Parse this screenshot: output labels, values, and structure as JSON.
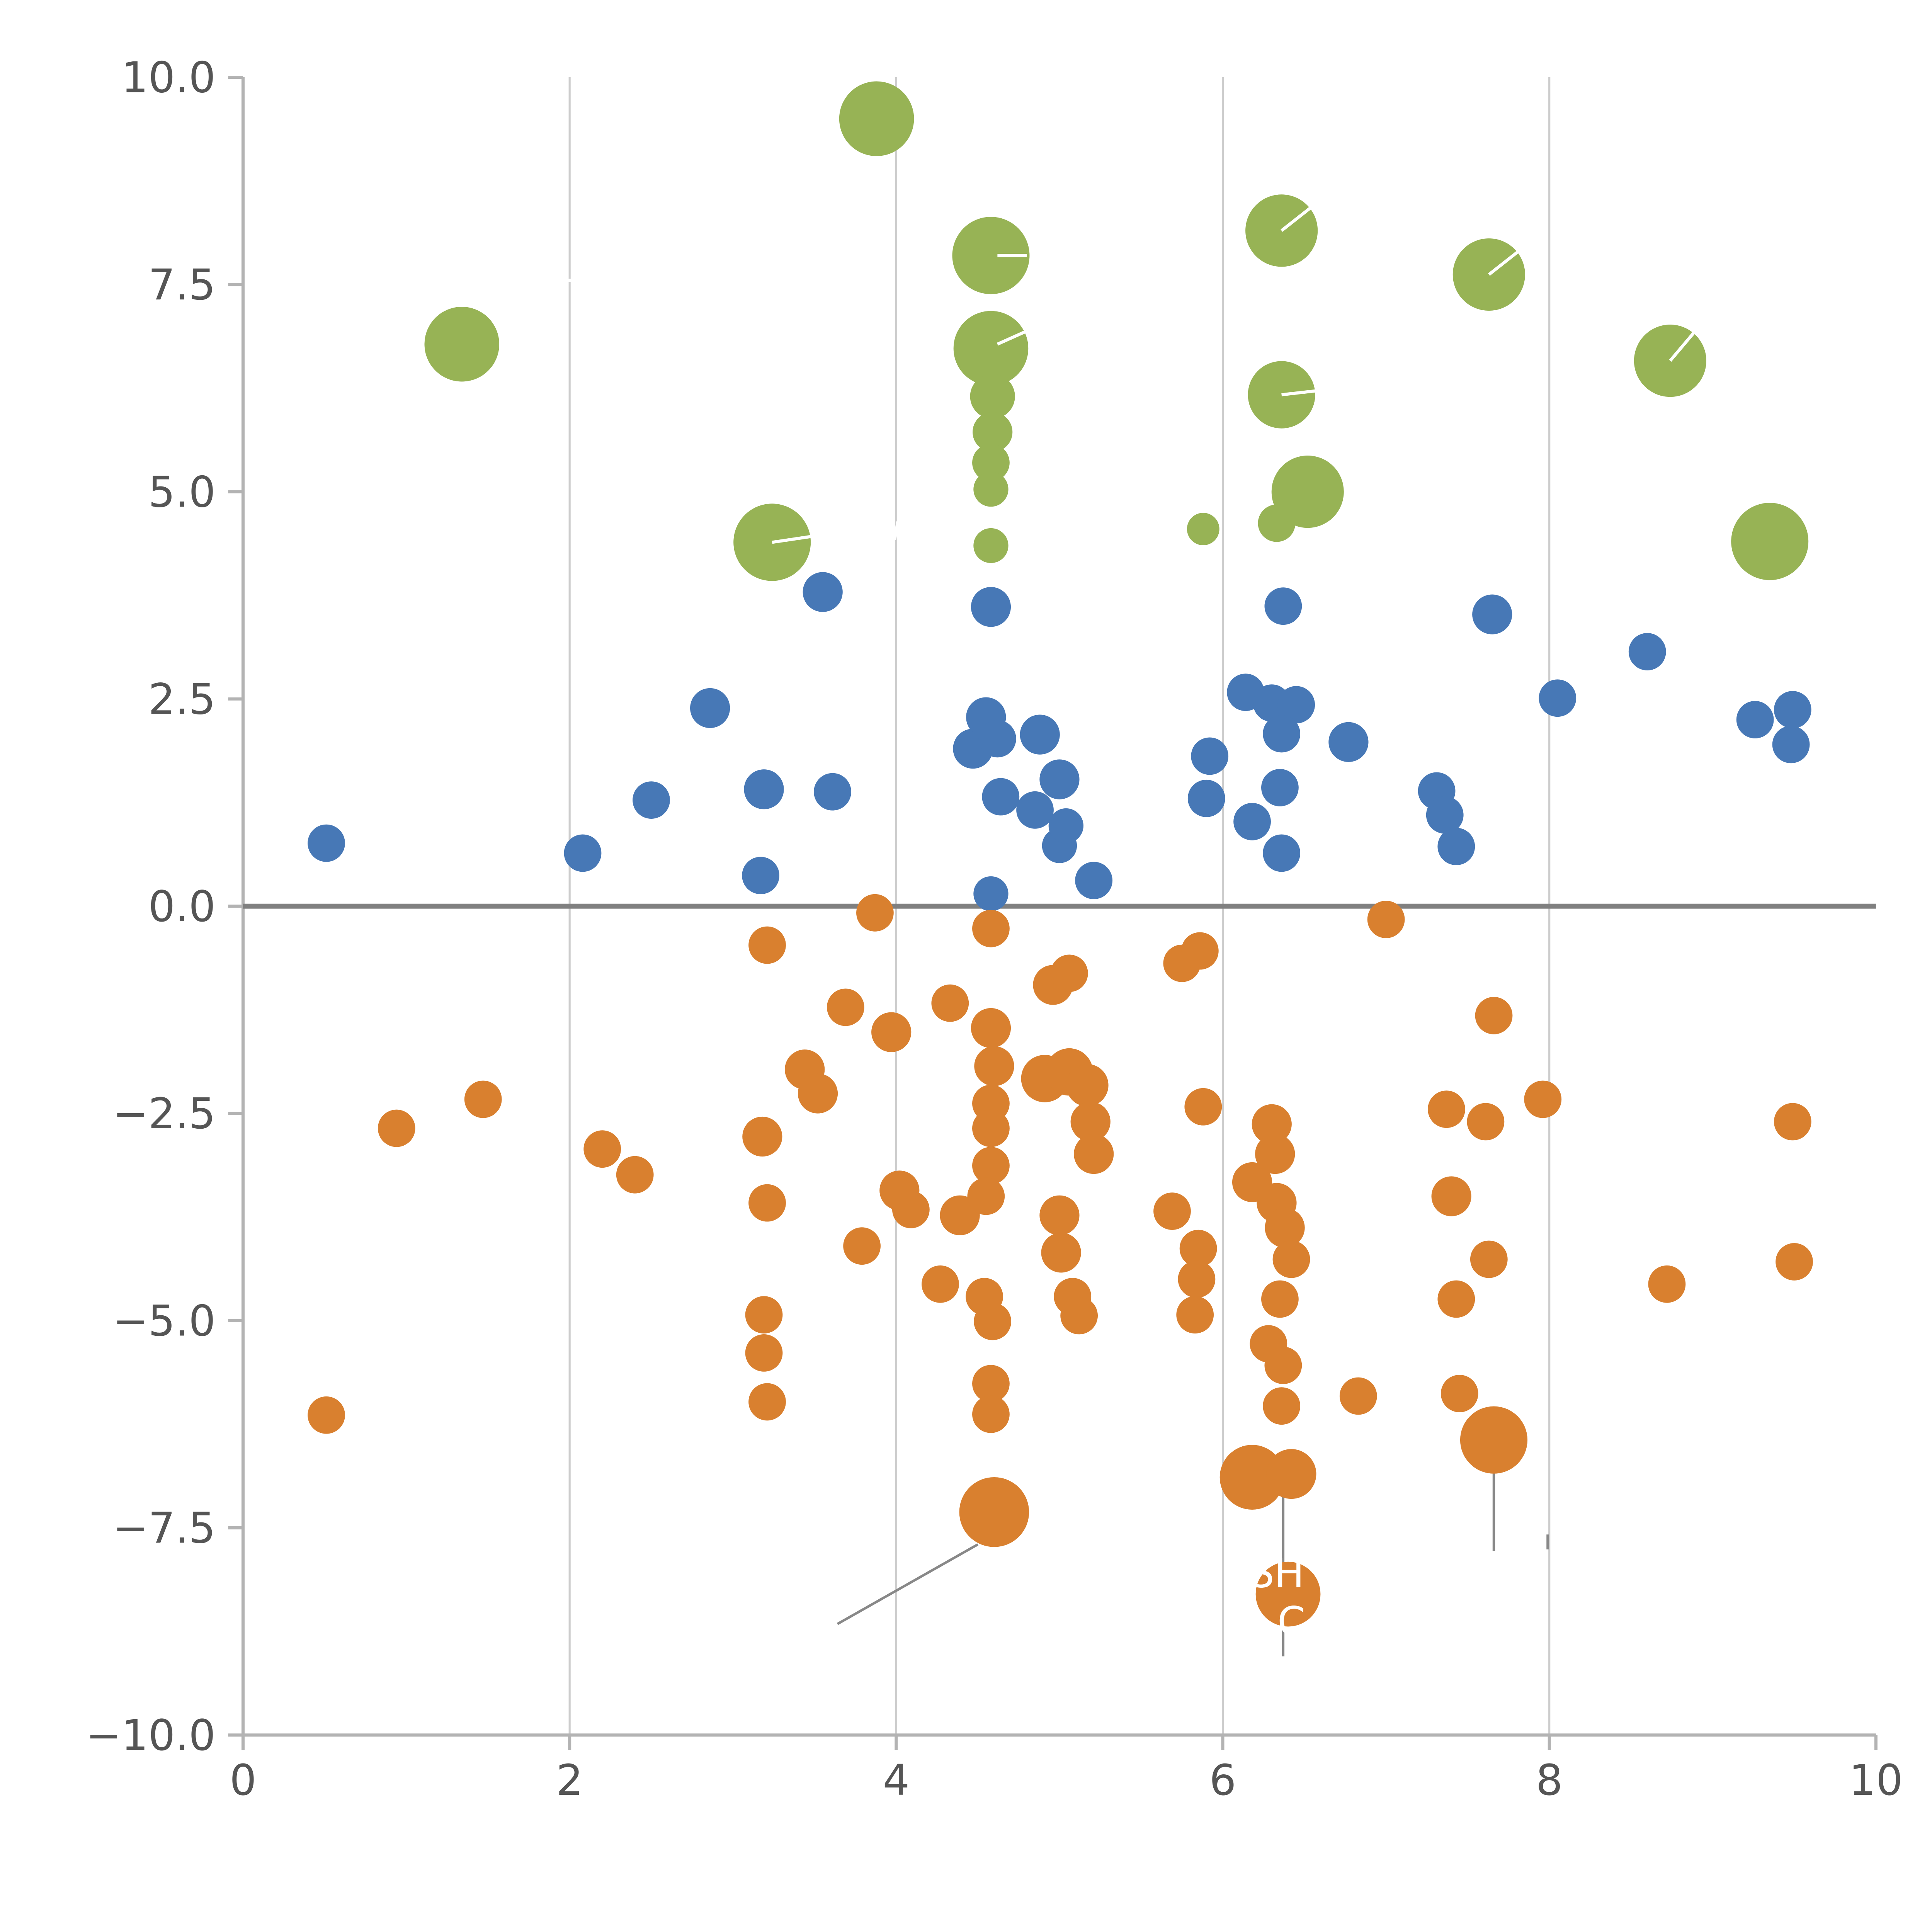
{
  "chart_data": {
    "type": "scatter",
    "title": "",
    "xlabel": "",
    "ylabel": "",
    "xlim": [
      0,
      10
    ],
    "ylim": [
      -10,
      10
    ],
    "grid": "vertical-only",
    "legend": "none",
    "xticks": {
      "values": [
        0,
        2,
        4,
        6,
        8,
        10
      ],
      "labels": [
        "0",
        "2",
        "4",
        "6",
        "8",
        "10"
      ]
    },
    "yticks": {
      "values": [
        10,
        7.5,
        5,
        2.5,
        0,
        -2.5,
        -5,
        -7.5,
        -10
      ],
      "labels": [
        "10.0",
        "7.5",
        "5.0",
        "2.5",
        "0.0",
        "−2.5",
        "−5.0",
        "−7.5",
        "−10.0"
      ]
    },
    "vertical_gridlines": [
      2,
      4,
      6,
      8
    ],
    "zero_line_y": 0,
    "colors": {
      "green_series": "#97b355",
      "blue_series": "#4778b6",
      "orange_series": "#d9802f",
      "axis": "#b3b3b3",
      "grid": "#cccccc",
      "zero_line": "#808080",
      "tick_label": "#555555",
      "leader_line": "#888888",
      "annotation_text": "#ffffff"
    },
    "series": [
      {
        "name": "green-large-bubbles",
        "color": "#97b355",
        "points": [
          [
            1.34,
            6.78,
            30
          ],
          [
            3.24,
            4.39,
            31
          ],
          [
            3.88,
            9.5,
            30
          ],
          [
            4.58,
            7.85,
            31
          ],
          [
            4.58,
            6.73,
            30
          ],
          [
            4.59,
            6.15,
            18
          ],
          [
            4.59,
            5.72,
            16
          ],
          [
            4.58,
            5.35,
            15
          ],
          [
            4.58,
            5.03,
            14
          ],
          [
            4.58,
            4.35,
            14
          ],
          [
            5.88,
            4.55,
            13
          ],
          [
            6.36,
            8.15,
            29
          ],
          [
            6.36,
            6.17,
            27
          ],
          [
            6.33,
            4.62,
            15
          ],
          [
            6.52,
            5.0,
            29
          ],
          [
            7.63,
            7.62,
            29
          ],
          [
            8.74,
            6.58,
            29
          ],
          [
            9.35,
            4.4,
            31
          ]
        ]
      },
      {
        "name": "blue-dots",
        "color": "#4778b6",
        "points": [
          [
            0.51,
            0.76,
            15
          ],
          [
            2.08,
            0.64,
            15
          ],
          [
            2.5,
            1.28,
            15
          ],
          [
            2.86,
            2.39,
            16
          ],
          [
            3.17,
            0.37,
            15
          ],
          [
            3.19,
            1.41,
            16
          ],
          [
            3.55,
            3.79,
            16
          ],
          [
            3.61,
            1.38,
            15
          ],
          [
            4.47,
            1.9,
            16
          ],
          [
            4.55,
            2.28,
            16
          ],
          [
            4.58,
            3.61,
            16
          ],
          [
            4.58,
            0.15,
            14
          ],
          [
            4.62,
            2.02,
            15
          ],
          [
            4.64,
            1.32,
            15
          ],
          [
            4.88,
            2.07,
            16
          ],
          [
            4.85,
            1.16,
            15
          ],
          [
            5.0,
            1.53,
            16
          ],
          [
            5.0,
            0.73,
            14
          ],
          [
            5.04,
            0.97,
            14
          ],
          [
            5.21,
            0.31,
            15
          ],
          [
            5.9,
            1.3,
            15
          ],
          [
            5.92,
            1.81,
            15
          ],
          [
            6.14,
            2.58,
            15
          ],
          [
            6.3,
            2.45,
            15
          ],
          [
            6.45,
            2.43,
            15
          ],
          [
            6.36,
            2.08,
            15
          ],
          [
            6.18,
            1.02,
            15
          ],
          [
            6.35,
            1.43,
            15
          ],
          [
            6.36,
            0.64,
            15
          ],
          [
            6.37,
            3.62,
            15
          ],
          [
            6.77,
            1.98,
            16
          ],
          [
            7.31,
            1.39,
            15
          ],
          [
            7.36,
            1.1,
            15
          ],
          [
            7.43,
            0.72,
            15
          ],
          [
            7.65,
            3.52,
            16
          ],
          [
            8.05,
            2.51,
            15
          ],
          [
            8.6,
            3.07,
            15
          ],
          [
            9.26,
            2.25,
            15
          ],
          [
            9.49,
            2.37,
            15
          ],
          [
            9.48,
            1.95,
            15
          ]
        ]
      },
      {
        "name": "orange-dots",
        "color": "#d9802f",
        "points": [
          [
            0.51,
            -6.14,
            15
          ],
          [
            0.94,
            -2.68,
            15
          ],
          [
            1.47,
            -2.33,
            15
          ],
          [
            2.2,
            -2.93,
            15
          ],
          [
            2.4,
            -3.24,
            15
          ],
          [
            3.18,
            -2.78,
            16
          ],
          [
            3.21,
            -3.58,
            15
          ],
          [
            3.19,
            -4.93,
            15
          ],
          [
            3.19,
            -5.39,
            15
          ],
          [
            3.21,
            -5.98,
            15
          ],
          [
            3.21,
            -0.47,
            15
          ],
          [
            3.44,
            -1.97,
            16
          ],
          [
            3.52,
            -2.26,
            16
          ],
          [
            3.69,
            -1.22,
            15
          ],
          [
            3.79,
            -4.1,
            15
          ],
          [
            3.87,
            -0.08,
            15
          ],
          [
            3.97,
            -1.52,
            16
          ],
          [
            4.02,
            -3.43,
            16
          ],
          [
            4.09,
            -3.66,
            15
          ],
          [
            4.27,
            -4.56,
            15
          ],
          [
            4.33,
            -1.17,
            15
          ],
          [
            4.39,
            -3.73,
            16
          ],
          [
            4.54,
            -4.71,
            15
          ],
          [
            4.59,
            -5.01,
            15
          ],
          [
            4.58,
            -0.27,
            15
          ],
          [
            4.58,
            -1.47,
            16
          ],
          [
            4.6,
            -1.93,
            16
          ],
          [
            4.58,
            -2.38,
            15
          ],
          [
            4.58,
            -2.68,
            15
          ],
          [
            4.58,
            -3.13,
            15
          ],
          [
            4.55,
            -3.5,
            15
          ],
          [
            4.58,
            -5.76,
            15
          ],
          [
            4.58,
            -6.13,
            15
          ],
          [
            4.6,
            -7.31,
            28
          ],
          [
            4.96,
            -0.95,
            16
          ],
          [
            5.06,
            -0.81,
            15
          ],
          [
            4.91,
            -2.08,
            19
          ],
          [
            5.06,
            -2.0,
            19
          ],
          [
            5.17,
            -2.16,
            17
          ],
          [
            5.0,
            -3.73,
            16
          ],
          [
            5.01,
            -4.18,
            16
          ],
          [
            5.08,
            -4.71,
            15
          ],
          [
            5.12,
            -4.94,
            15
          ],
          [
            5.19,
            -2.6,
            16
          ],
          [
            5.21,
            -2.99,
            16
          ],
          [
            5.75,
            -0.69,
            15
          ],
          [
            5.86,
            -0.54,
            15
          ],
          [
            5.69,
            -3.68,
            15
          ],
          [
            5.88,
            -2.42,
            15
          ],
          [
            5.85,
            -4.13,
            15
          ],
          [
            5.84,
            -4.5,
            15
          ],
          [
            5.83,
            -4.93,
            15
          ],
          [
            6.18,
            -3.33,
            16
          ],
          [
            6.3,
            -2.63,
            16
          ],
          [
            6.32,
            -2.99,
            16
          ],
          [
            6.33,
            -3.58,
            16
          ],
          [
            6.38,
            -3.88,
            16
          ],
          [
            6.42,
            -4.26,
            15
          ],
          [
            6.35,
            -4.74,
            15
          ],
          [
            6.28,
            -5.28,
            15
          ],
          [
            6.37,
            -5.54,
            15
          ],
          [
            6.36,
            -6.03,
            15
          ],
          [
            6.18,
            -6.89,
            26
          ],
          [
            6.42,
            -6.85,
            20
          ],
          [
            6.4,
            -8.3,
            26
          ],
          [
            6.83,
            -5.91,
            15
          ],
          [
            7.0,
            -0.16,
            15
          ],
          [
            7.37,
            -2.45,
            15
          ],
          [
            7.4,
            -3.5,
            16
          ],
          [
            7.43,
            -4.74,
            15
          ],
          [
            7.45,
            -5.88,
            15
          ],
          [
            7.61,
            -2.6,
            15
          ],
          [
            7.66,
            -1.32,
            15
          ],
          [
            7.63,
            -4.26,
            15
          ],
          [
            7.66,
            -6.44,
            27
          ],
          [
            7.96,
            -2.33,
            15
          ],
          [
            8.72,
            -4.56,
            15
          ],
          [
            9.49,
            -2.6,
            15
          ],
          [
            9.5,
            -4.29,
            15
          ]
        ]
      }
    ],
    "annotations": {
      "leader_lines": [
        {
          "x1": 3.64,
          "y1": -8.66,
          "x2": 4.5,
          "y2": -7.7
        },
        {
          "x1": 6.37,
          "y1": -6.96,
          "x2": 6.37,
          "y2": -9.05
        },
        {
          "x1": 7.66,
          "y1": -6.6,
          "x2": 7.66,
          "y2": -7.78
        },
        {
          "x1": 7.99,
          "y1": -7.58,
          "x2": 7.99,
          "y2": -7.76
        }
      ],
      "white_ticks": [
        {
          "x1": 6.36,
          "y1": 8.15,
          "x2": 6.56,
          "y2": 8.46
        },
        {
          "x1": 7.63,
          "y1": 7.62,
          "x2": 7.83,
          "y2": 7.93
        },
        {
          "x1": 8.74,
          "y1": 6.58,
          "x2": 8.89,
          "y2": 6.93
        },
        {
          "x1": 6.36,
          "y1": 6.17,
          "x2": 6.63,
          "y2": 6.23
        },
        {
          "x1": 3.24,
          "y1": 4.39,
          "x2": 3.48,
          "y2": 4.46
        },
        {
          "x1": 4.62,
          "y1": 7.85,
          "x2": 4.8,
          "y2": 7.85
        },
        {
          "x1": 4.62,
          "y1": 6.78,
          "x2": 4.79,
          "y2": 6.93
        },
        {
          "x1": 1.96,
          "y1": 7.55,
          "x2": 2.04,
          "y2": 7.55
        },
        {
          "x1": 3.99,
          "y1": 4.42,
          "x2": 4.01,
          "y2": 4.64
        }
      ],
      "labels": [
        {
          "text": "SH",
          "x": 6.33,
          "y": -8.05
        },
        {
          "text": "C",
          "x": 6.42,
          "y": -8.63
        }
      ]
    }
  }
}
